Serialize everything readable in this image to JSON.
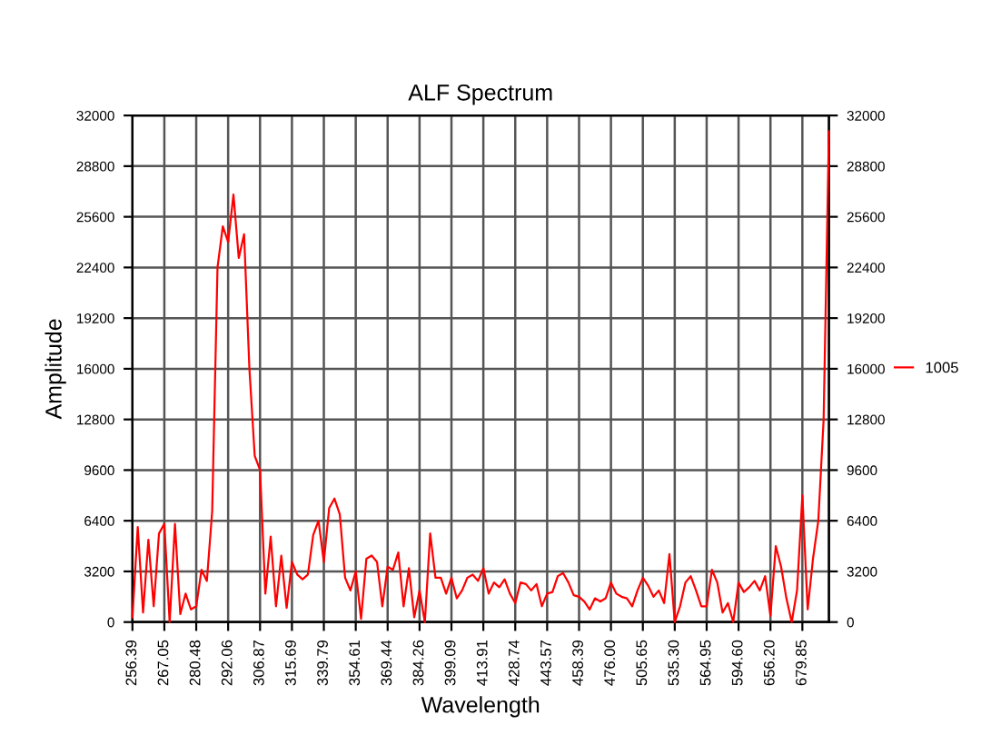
{
  "chart_data": {
    "type": "line",
    "title": "ALF Spectrum",
    "xlabel": "Wavelength",
    "ylabel": "Amplitude",
    "categories": [
      "256.39",
      null,
      null,
      null,
      null,
      null,
      "267.05",
      null,
      null,
      null,
      null,
      null,
      "280.48",
      null,
      null,
      null,
      null,
      null,
      "292.06",
      null,
      null,
      null,
      null,
      null,
      "306.87",
      null,
      null,
      null,
      null,
      null,
      "315.69",
      null,
      null,
      null,
      null,
      null,
      "339.79",
      null,
      null,
      null,
      null,
      null,
      "354.61",
      null,
      null,
      null,
      null,
      null,
      "369.44",
      null,
      null,
      null,
      null,
      null,
      "384.26",
      null,
      null,
      null,
      null,
      null,
      "399.09",
      null,
      null,
      null,
      null,
      null,
      "413.91",
      null,
      null,
      null,
      null,
      null,
      "428.74",
      null,
      null,
      null,
      null,
      null,
      "443.57",
      null,
      null,
      null,
      null,
      null,
      "458.39",
      null,
      null,
      null,
      null,
      null,
      "476.00",
      null,
      null,
      null,
      null,
      null,
      "505.65",
      null,
      null,
      null,
      null,
      null,
      "535.30",
      null,
      null,
      null,
      null,
      null,
      "564.95",
      null,
      null,
      null,
      null,
      null,
      "594.60",
      null,
      null,
      null,
      null,
      null,
      "656.20",
      null,
      null,
      null,
      null,
      null,
      "679.85",
      null,
      null,
      null,
      null,
      null
    ],
    "series": [
      {
        "name": "1005",
        "color": "#ff0000",
        "values": [
          300,
          6000,
          600,
          5200,
          1000,
          5600,
          6200,
          0,
          6200,
          500,
          1800,
          800,
          1000,
          3300,
          2600,
          7000,
          22400,
          25000,
          24000,
          27000,
          23000,
          24500,
          16000,
          10500,
          9600,
          1800,
          5400,
          1000,
          4200,
          900,
          3800,
          3000,
          2700,
          3000,
          5500,
          6400,
          3800,
          7200,
          7800,
          6800,
          2800,
          2000,
          3200,
          200,
          4000,
          4200,
          3800,
          1000,
          3500,
          3300,
          4400,
          1000,
          3400,
          300,
          2000,
          0,
          5600,
          2800,
          2800,
          1800,
          2800,
          1500,
          2000,
          2800,
          3000,
          2600,
          3400,
          1800,
          2500,
          2200,
          2700,
          1800,
          1200,
          2500,
          2400,
          2000,
          2400,
          1000,
          1800,
          1900,
          2900,
          3100,
          2500,
          1700,
          1600,
          1300,
          800,
          1500,
          1300,
          1500,
          2500,
          1800,
          1600,
          1500,
          1000,
          2000,
          2800,
          2300,
          1600,
          2000,
          1200,
          4300,
          0,
          1000,
          2500,
          2900,
          2000,
          1000,
          1000,
          3300,
          2500,
          600,
          1200,
          0,
          2500,
          1900,
          2200,
          2600,
          2000,
          2900,
          400,
          4800,
          3500,
          1500,
          0,
          2000,
          8000,
          800,
          4000,
          6400,
          12800,
          31000
        ]
      }
    ],
    "ylim": [
      0,
      32000
    ],
    "yticks": [
      0,
      3200,
      6400,
      9600,
      12800,
      16000,
      19200,
      22400,
      25600,
      28800,
      32000
    ],
    "y2lim": [
      0,
      32000
    ],
    "y2ticks": [
      0,
      3200,
      6400,
      9600,
      12800,
      16000,
      19200,
      22400,
      25600,
      28800,
      32000
    ],
    "grid": true,
    "legend": "right",
    "marker": "none",
    "line_style": "solid"
  }
}
